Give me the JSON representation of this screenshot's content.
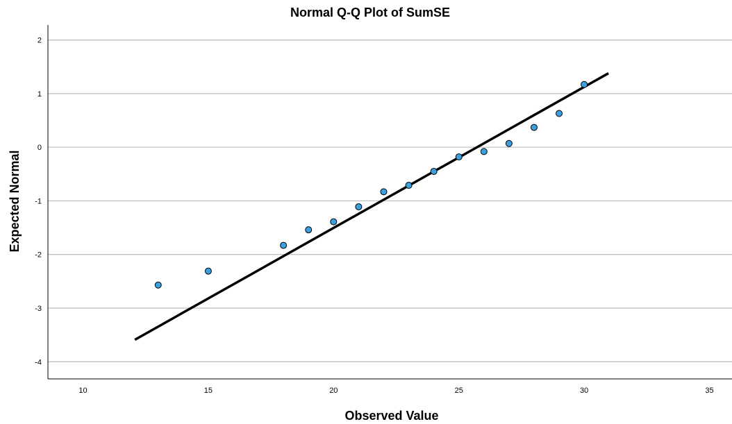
{
  "chart_data": {
    "type": "scatter",
    "title": "Normal Q-Q Plot of SumSE",
    "xlabel": "Observed Value",
    "ylabel": "Expected Normal",
    "xlim": [
      8.6,
      35.9
    ],
    "ylim": [
      -4.32,
      2.28
    ],
    "xticks": [
      10,
      15,
      20,
      25,
      30,
      35
    ],
    "yticks": [
      2,
      1,
      0,
      -1,
      -2,
      -3,
      -4
    ],
    "grid": true,
    "points": [
      {
        "x": 13,
        "y": -2.57
      },
      {
        "x": 15,
        "y": -2.31
      },
      {
        "x": 18,
        "y": -1.83
      },
      {
        "x": 19,
        "y": -1.54
      },
      {
        "x": 20,
        "y": -1.39
      },
      {
        "x": 21,
        "y": -1.11
      },
      {
        "x": 22,
        "y": -0.83
      },
      {
        "x": 23,
        "y": -0.71
      },
      {
        "x": 24,
        "y": -0.45
      },
      {
        "x": 25,
        "y": -0.18
      },
      {
        "x": 26,
        "y": -0.08
      },
      {
        "x": 27,
        "y": 0.07
      },
      {
        "x": 28,
        "y": 0.37
      },
      {
        "x": 29,
        "y": 0.63
      },
      {
        "x": 30,
        "y": 1.17
      }
    ],
    "reference_line": {
      "x": [
        12.07,
        30.97
      ],
      "y": [
        -3.59,
        1.38
      ]
    },
    "colors": {
      "point_fill": "#3aa0e0",
      "point_stroke": "#000000",
      "line": "#000000",
      "grid": "#bdbdbd",
      "axis": "#000000",
      "background": "#ffffff"
    }
  }
}
